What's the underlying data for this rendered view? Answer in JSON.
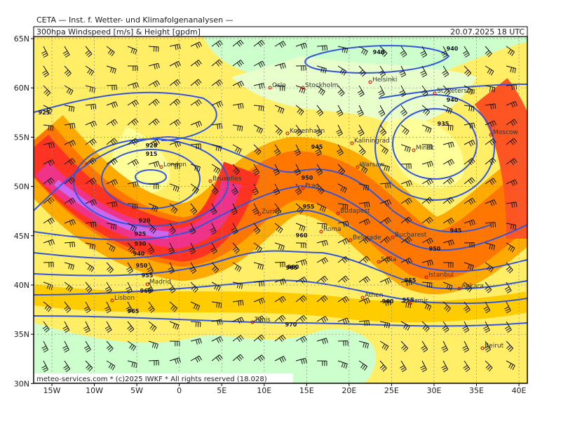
{
  "header": {
    "title": "CETA — Inst. f. Wetter- und Klimafolgenanalysen —",
    "product": "300hpa Windspeed [m/s] & Height [gpdm]",
    "datetime": "20.07.2025 18 UTC"
  },
  "footer": "meteo-services.com * (c)2025 IWKF * All rights reserved (18.028)",
  "lat_labels": [
    "65N",
    "60N",
    "55N",
    "50N",
    "45N",
    "40N",
    "35N",
    "30N"
  ],
  "lon_labels": [
    "15W",
    "10W",
    "5W",
    "0",
    "5E",
    "10E",
    "15E",
    "20E",
    "25E",
    "30E",
    "35E",
    "40E"
  ],
  "cities": [
    "Oslo",
    "Stockholm",
    "Helsinki",
    "St. Petersbg",
    "Kobenhavn",
    "Kaliningrad",
    "Minsk",
    "Moscow",
    "London",
    "Warsaw",
    "Bruxelles",
    "Prag",
    "Zurich",
    "Budapest",
    "Belgrade",
    "Bucharest",
    "Sofia",
    "Istanbul",
    "Ankara",
    "Madrid",
    "Athen",
    "Izmir",
    "Lisbon",
    "Tunis",
    "Beirut",
    "Roma"
  ],
  "contour_labels": [
    "940",
    "940",
    "925",
    "920",
    "915",
    "920",
    "925",
    "930",
    "940",
    "950",
    "955",
    "960",
    "965",
    "945",
    "950",
    "955",
    "960",
    "955",
    "960",
    "965",
    "970",
    "940",
    "935",
    "945",
    "950",
    "955",
    "960"
  ]
}
